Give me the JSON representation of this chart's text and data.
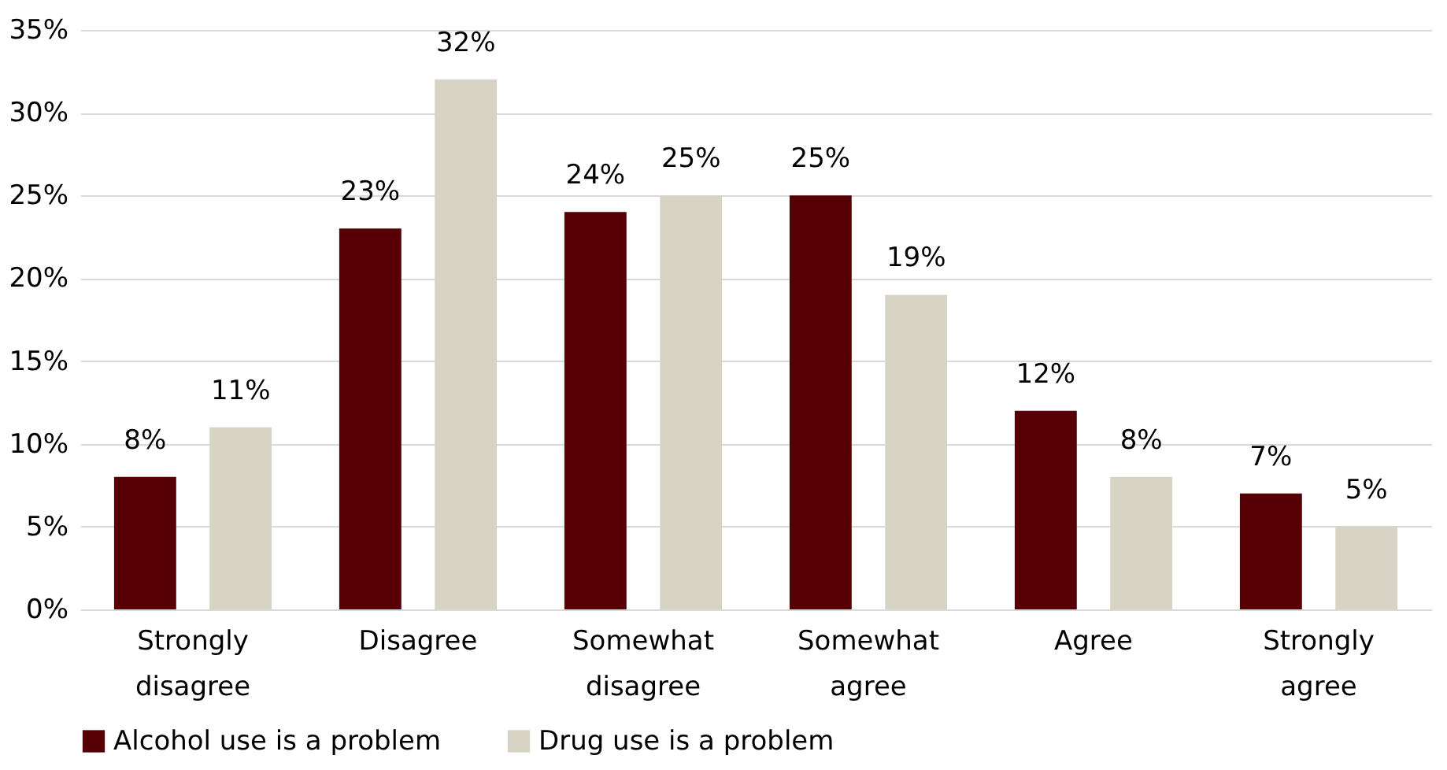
{
  "chart_data": {
    "type": "bar",
    "categories": [
      "Strongly disagree",
      "Disagree",
      "Somewhat disagree",
      "Somewhat agree",
      "Agree",
      "Strongly agree"
    ],
    "series": [
      {
        "name": "Alcohol use is a problem",
        "color": "#560005",
        "values": [
          8,
          23,
          24,
          25,
          12,
          7
        ],
        "value_labels": [
          "8%",
          "23%",
          "24%",
          "25%",
          "12%",
          "7%"
        ]
      },
      {
        "name": "Drug use is a problem",
        "color": "#d8d4c5",
        "values": [
          11,
          32,
          25,
          19,
          8,
          5
        ],
        "value_labels": [
          "11%",
          "32%",
          "25%",
          "19%",
          "8%",
          "5%"
        ]
      }
    ],
    "ylim": [
      0,
      35
    ],
    "yticks": [
      {
        "value": 0,
        "label": "0%"
      },
      {
        "value": 5,
        "label": "5%"
      },
      {
        "value": 10,
        "label": "10%"
      },
      {
        "value": 15,
        "label": "15%"
      },
      {
        "value": 20,
        "label": "20%"
      },
      {
        "value": 25,
        "label": "25%"
      },
      {
        "value": 30,
        "label": "30%"
      },
      {
        "value": 35,
        "label": "35%"
      }
    ],
    "grid": "y",
    "legend": "bottom"
  }
}
